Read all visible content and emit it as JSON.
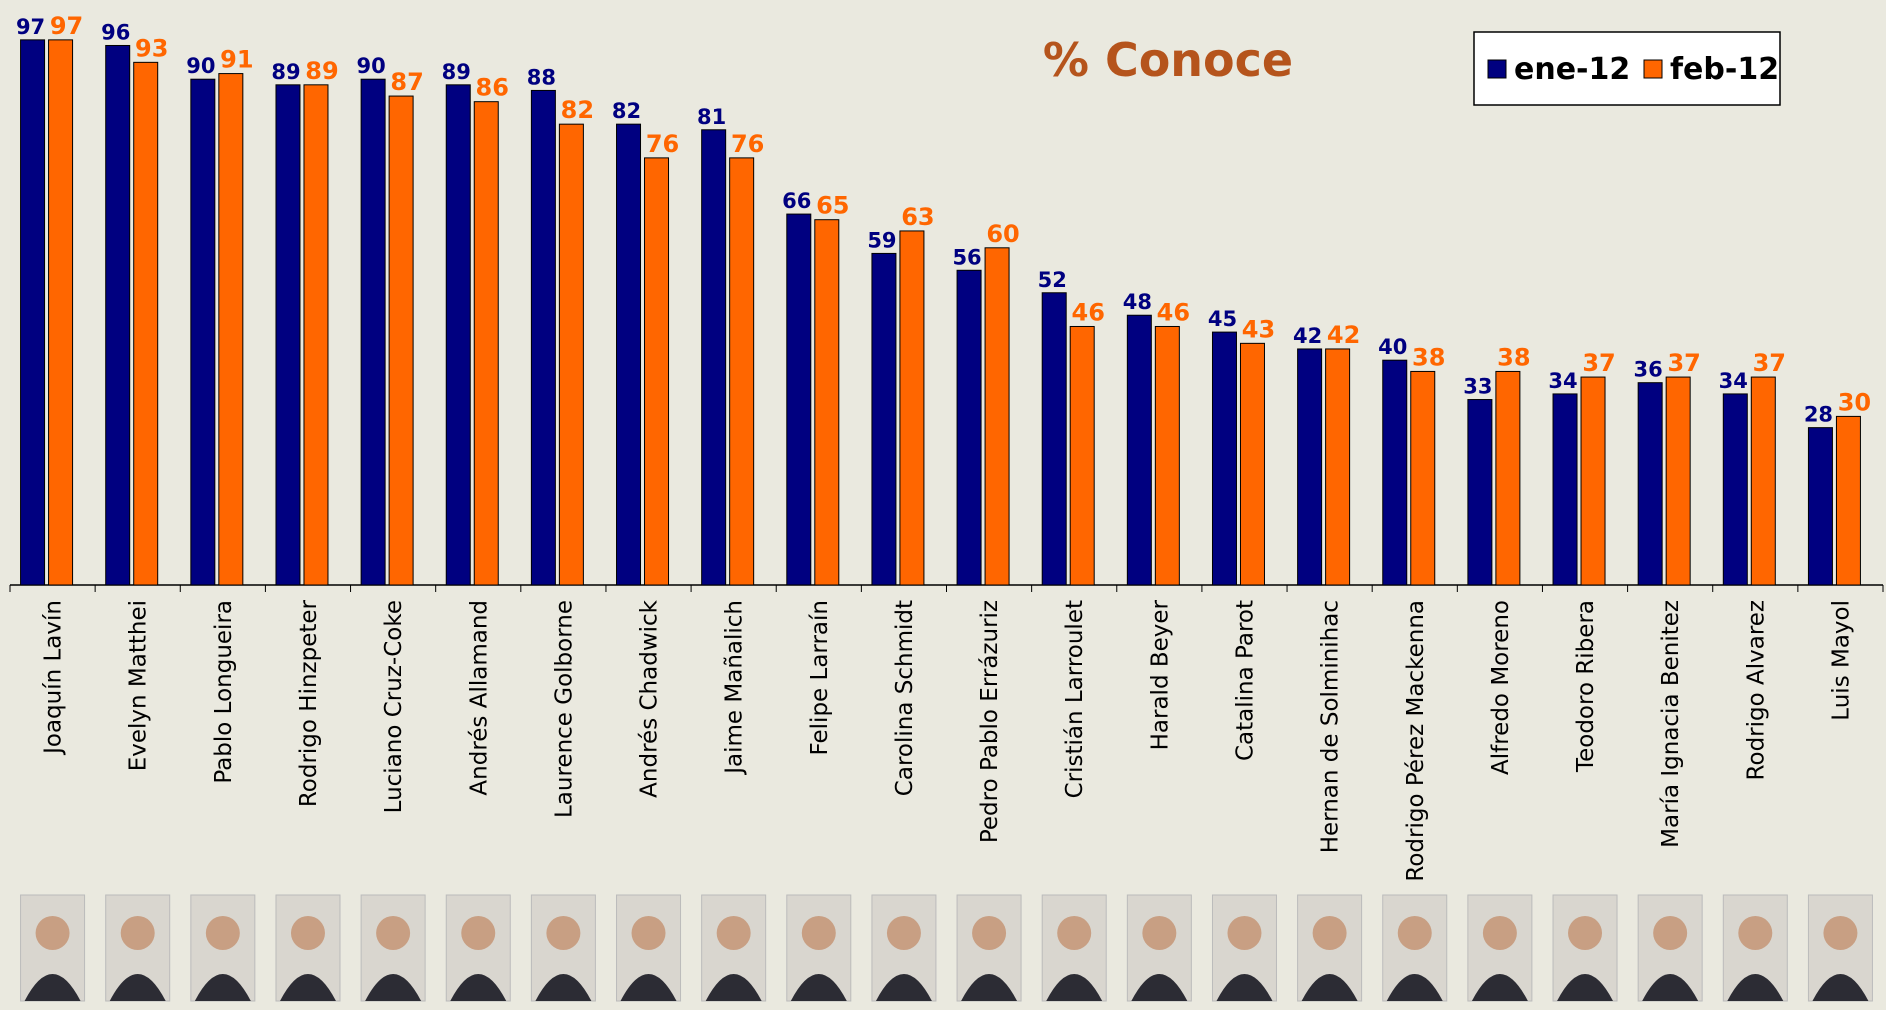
{
  "chart_data": {
    "type": "bar",
    "title": "% Conoce",
    "categories": [
      "Joaquín Lavín",
      "Evelyn Matthei",
      "Pablo Longueira",
      "Rodrigo Hinzpeter",
      "Luciano Cruz-Coke",
      "Andrés Allamand",
      "Laurence Golborne",
      "Andrés Chadwick",
      "Jaime Mañalich",
      "Felipe Larraín",
      "Carolina Schmidt",
      "Pedro Pablo Errázuriz",
      "Cristián Larroulet",
      "Harald Beyer",
      "Catalina Parot",
      "Hernan de Solminihac",
      "Rodrigo Pérez Mackenna",
      "Alfredo Moreno",
      "Teodoro Ribera",
      "María Ignacia Benitez",
      "Rodrigo Alvarez",
      "Luis Mayol"
    ],
    "series": [
      {
        "name": "ene-12",
        "color": "#000080",
        "values": [
          97,
          96,
          90,
          89,
          90,
          89,
          88,
          82,
          81,
          66,
          59,
          56,
          52,
          48,
          45,
          42,
          40,
          33,
          34,
          36,
          34,
          28
        ]
      },
      {
        "name": "feb-12",
        "color": "#ff6600",
        "values": [
          97,
          93,
          91,
          89,
          87,
          86,
          82,
          76,
          76,
          65,
          63,
          60,
          46,
          46,
          43,
          42,
          38,
          38,
          37,
          37,
          37,
          30
        ]
      }
    ],
    "ylim": [
      0,
      100
    ],
    "legend": "top-right"
  }
}
